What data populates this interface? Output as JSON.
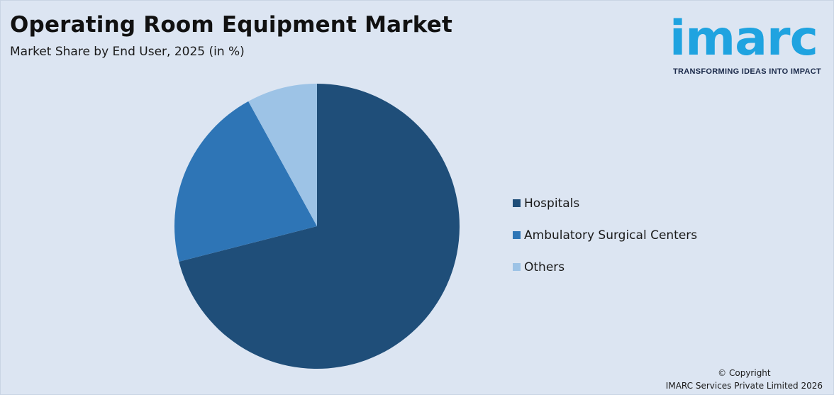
{
  "header": {
    "title": "Operating Room Equipment Market",
    "subtitle": "Market Share by End User, 2025 (in %)"
  },
  "logo": {
    "text": "imarc",
    "tagline": "TRANSFORMING IDEAS INTO IMPACT",
    "color": "#1fa3e0"
  },
  "chart_data": {
    "type": "pie",
    "title": "Operating Room Equipment Market",
    "subtitle": "Market Share by End User, 2025 (in %)",
    "categories": [
      "Hospitals",
      "Ambulatory Surgical Centers",
      "Others"
    ],
    "values": [
      71,
      21,
      8
    ],
    "colors": [
      "#1f4e79",
      "#2e75b6",
      "#9dc3e6"
    ],
    "legend_position": "right",
    "start_angle_deg": 0,
    "direction": "clockwise"
  },
  "footer": {
    "copyright_line1": "© Copyright",
    "copyright_line2": "IMARC Services Private Limited 2026"
  }
}
